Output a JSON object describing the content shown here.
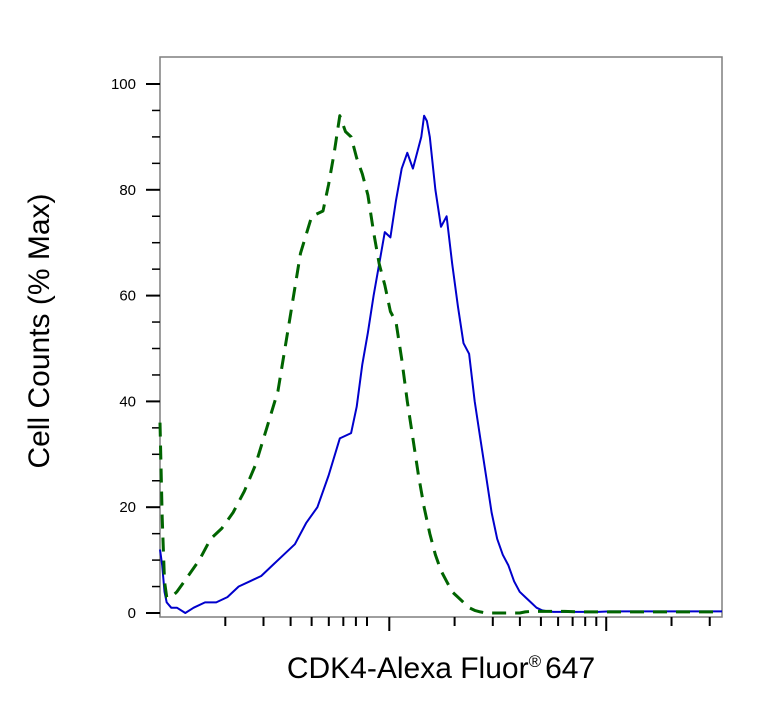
{
  "chart_data": {
    "type": "line",
    "xlabel": "CDK4-Alexa Fluor",
    "xlabel_superscript": "®",
    "xlabel_suffix": "647",
    "ylabel": "Cell Counts (% Max)",
    "x_scale": "log (unlabeled ticks)",
    "x_range": [
      0,
      100
    ],
    "ylim": [
      0,
      105
    ],
    "y_ticks": [
      "0",
      "20",
      "40",
      "60",
      "80",
      "100"
    ],
    "grid": false,
    "legend": "none",
    "series": [
      {
        "color": "#0000cc",
        "style": "solid",
        "x": [
          0.0,
          0.4,
          0.8,
          1.2,
          2.0,
          3.0,
          4.5,
          6.0,
          8.0,
          10.0,
          12.0,
          14.0,
          16.0,
          18.0,
          20.0,
          22.0,
          24.0,
          26.0,
          28.0,
          30.0,
          32.0,
          34.0,
          35.0,
          36.0,
          37.0,
          38.0,
          39.0,
          40.0,
          41.0,
          42.0,
          43.0,
          44.0,
          45.0,
          46.0,
          46.5,
          47.0,
          47.5,
          48.0,
          49.0,
          50.0,
          51.0,
          52.0,
          53.0,
          54.0,
          55.0,
          56.0,
          57.0,
          58.0,
          59.0,
          60.0,
          61.0,
          62.0,
          63.0,
          64.0,
          65.0,
          66.0,
          67.0,
          68.0,
          69.0,
          70.0,
          71.0,
          72.0,
          73.0,
          74.0,
          76.0,
          78.0,
          80.0,
          85.0,
          90.0,
          95.0,
          100.0
        ],
        "y": [
          12,
          9,
          4,
          2,
          1,
          1,
          0,
          1,
          2,
          2,
          3,
          5,
          6,
          7,
          9,
          11,
          13,
          17,
          20,
          26,
          33,
          34,
          39,
          47,
          53,
          60,
          66,
          72,
          71,
          78,
          84,
          87,
          84,
          88,
          90,
          94,
          93,
          90,
          80,
          73,
          75,
          66,
          58,
          51,
          49,
          40,
          33,
          26,
          19,
          14,
          11,
          9,
          6,
          4,
          3,
          2,
          1,
          0.5,
          0.3,
          0.2,
          0.2,
          0.2,
          0.2,
          0.2,
          0.2,
          0.2,
          0.3,
          0.3,
          0.3,
          0.3,
          0.3
        ]
      },
      {
        "color": "#006400",
        "style": "dashed",
        "x": [
          0.0,
          0.4,
          0.8,
          1.2,
          2.0,
          3.0,
          5.0,
          7.0,
          9.0,
          11.0,
          13.0,
          15.0,
          17.0,
          19.0,
          21.0,
          23.0,
          25.0,
          27.0,
          29.0,
          30.0,
          31.0,
          32.0,
          33.0,
          34.0,
          35.0,
          36.0,
          37.0,
          38.0,
          39.0,
          40.0,
          41.0,
          42.0,
          43.0,
          44.0,
          45.0,
          46.0,
          47.0,
          48.0,
          49.0,
          50.0,
          51.0,
          52.0,
          53.0,
          54.0,
          55.0,
          56.0,
          57.0,
          58.0,
          59.0,
          60.0,
          61.0,
          62.0,
          63.0,
          64.0,
          65.0,
          66.0,
          68.0,
          70.0,
          72.0,
          75.0,
          80.0,
          85.0,
          90.0,
          95.0,
          100.0
        ],
        "y": [
          36,
          18,
          6,
          3,
          3,
          4,
          7,
          10,
          14,
          16,
          19,
          23,
          28,
          35,
          42,
          55,
          68,
          75,
          76,
          81,
          87,
          94,
          91,
          90,
          86,
          83,
          79,
          72,
          66,
          62,
          57,
          55,
          48,
          40,
          33,
          26,
          20,
          15,
          11,
          8,
          6,
          4,
          3,
          2,
          1,
          0.5,
          0.2,
          0,
          0,
          0,
          0,
          0,
          0,
          0,
          0.2,
          0.3,
          0.3,
          0.3,
          0.3,
          0.2,
          0.2,
          0.2,
          0.2,
          0.2,
          0.2
        ]
      }
    ]
  }
}
